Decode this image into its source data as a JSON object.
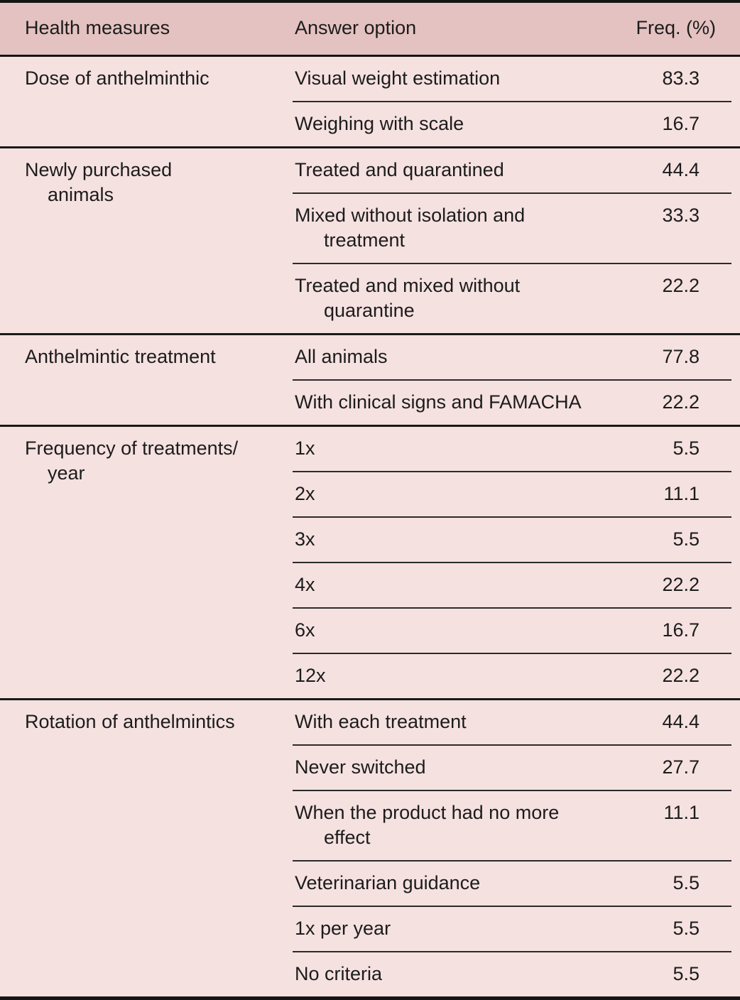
{
  "table": {
    "columns": {
      "measure": "Health measures",
      "option": "Answer option",
      "freq": "Freq. (%)"
    },
    "colors": {
      "header_bg": "#e4c2c1",
      "body_bg": "#f5e1e0",
      "rule_dark": "#141414",
      "rule_inner": "#2b2b2b",
      "text": "#1c1c1c"
    },
    "groups": [
      {
        "measure": "Dose of anthelminthic",
        "rows": [
          {
            "option": "Visual weight estimation",
            "freq": "83.3"
          },
          {
            "option": "Weighing with scale",
            "freq": "16.7"
          }
        ]
      },
      {
        "measure": [
          "Newly purchased",
          "animals"
        ],
        "rows": [
          {
            "option": "Treated and quarantined",
            "freq": "44.4"
          },
          {
            "option": [
              "Mixed without isolation and",
              "treatment"
            ],
            "freq": "33.3"
          },
          {
            "option": [
              "Treated and mixed without",
              "quarantine"
            ],
            "freq": "22.2"
          }
        ]
      },
      {
        "measure": "Anthelmintic treatment",
        "rows": [
          {
            "option": "All animals",
            "freq": "77.8"
          },
          {
            "option": "With clinical signs and FAMACHA",
            "freq": "22.2"
          }
        ]
      },
      {
        "measure": [
          "Frequency of treatments/",
          "year"
        ],
        "rows": [
          {
            "option": "1x",
            "freq": "5.5"
          },
          {
            "option": "2x",
            "freq": "11.1"
          },
          {
            "option": "3x",
            "freq": "5.5"
          },
          {
            "option": "4x",
            "freq": "22.2"
          },
          {
            "option": "6x",
            "freq": "16.7"
          },
          {
            "option": "12x",
            "freq": "22.2"
          }
        ]
      },
      {
        "measure": "Rotation of anthelmintics",
        "rows": [
          {
            "option": "With each treatment",
            "freq": "44.4"
          },
          {
            "option": "Never switched",
            "freq": "27.7"
          },
          {
            "option": [
              "When the product had no more",
              "effect"
            ],
            "freq": "11.1"
          },
          {
            "option": "Veterinarian guidance",
            "freq": "5.5"
          },
          {
            "option": "1x per year",
            "freq": "5.5"
          },
          {
            "option": "No criteria",
            "freq": "5.5"
          }
        ]
      }
    ]
  }
}
